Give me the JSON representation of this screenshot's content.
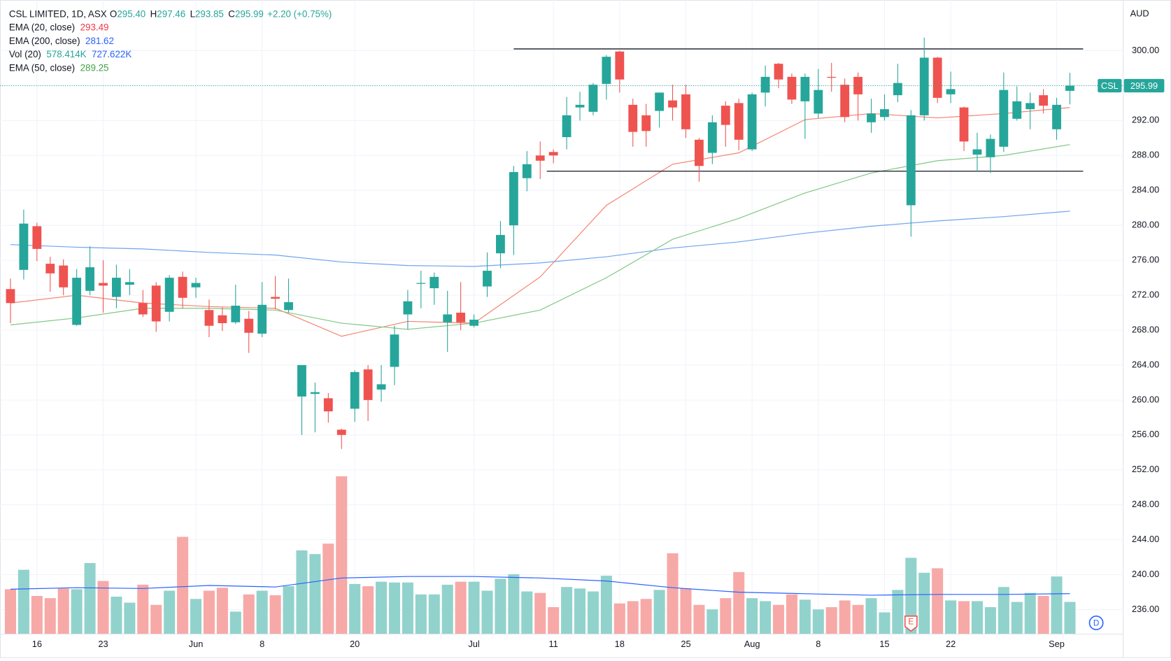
{
  "chart_data": {
    "type": "candlestick",
    "header": {
      "symbol": "CSL LIMITED, 1D, ASX",
      "ohlc": [
        {
          "label": "O",
          "value": "295.40"
        },
        {
          "label": "H",
          "value": "297.46"
        },
        {
          "label": "L",
          "value": "293.85"
        },
        {
          "label": "C",
          "value": "295.99"
        }
      ],
      "change": "+2.20 (+0.75%)"
    },
    "currency": "AUD",
    "up_color": "#26a69a",
    "down_color": "#ef5350",
    "volume_up_color": "#92d2cc",
    "volume_down_color": "#f7a9a7",
    "ylim": [
      233.2,
      305.8
    ],
    "yticks": [
      {
        "value": 236,
        "label": "236.00"
      },
      {
        "value": 240,
        "label": "240.00"
      },
      {
        "value": 244,
        "label": "244.00"
      },
      {
        "value": 248,
        "label": "248.00"
      },
      {
        "value": 252,
        "label": "252.00"
      },
      {
        "value": 256,
        "label": "256.00"
      },
      {
        "value": 260,
        "label": "260.00"
      },
      {
        "value": 264,
        "label": "264.00"
      },
      {
        "value": 268,
        "label": "268.00"
      },
      {
        "value": 272,
        "label": "272.00"
      },
      {
        "value": 276,
        "label": "276.00"
      },
      {
        "value": 280,
        "label": "280.00"
      },
      {
        "value": 284,
        "label": "284.00"
      },
      {
        "value": 288,
        "label": "288.00"
      },
      {
        "value": 292,
        "label": "292.00"
      },
      {
        "value": 296,
        "label": "296.00"
      },
      {
        "value": 300,
        "label": "300.00"
      }
    ],
    "xticks": [
      {
        "value": 2,
        "label": "16"
      },
      {
        "value": 7,
        "label": "23"
      },
      {
        "value": 14,
        "label": "Jun"
      },
      {
        "value": 19,
        "label": "8"
      },
      {
        "value": 26,
        "label": "20"
      },
      {
        "value": 35,
        "label": "Jul"
      },
      {
        "value": 41,
        "label": "11"
      },
      {
        "value": 46,
        "label": "18"
      },
      {
        "value": 51,
        "label": "25"
      },
      {
        "value": 56,
        "label": "Aug"
      },
      {
        "value": 61,
        "label": "8"
      },
      {
        "value": 66,
        "label": "15"
      },
      {
        "value": 71,
        "label": "22"
      },
      {
        "value": 79,
        "label": "Sep"
      }
    ],
    "grid": true,
    "candles": {
      "open": [
        272.7,
        274.9,
        279.9,
        275.6,
        275.4,
        268.6,
        272.5,
        273.4,
        271.8,
        273.2,
        271.1,
        273.1,
        270.1,
        274.1,
        272.9,
        270.3,
        269.7,
        268.9,
        269.3,
        267.6,
        271.8,
        270.3,
        260.4,
        260.7,
        260.2,
        256.6,
        259,
        263.5,
        261.2,
        263.8,
        269.8,
        273.3,
        272.8,
        268.9,
        270,
        268.5,
        273,
        276.8,
        280,
        285.4,
        288,
        288.4,
        290.1,
        293.5,
        293,
        296.2,
        299.9,
        293.8,
        292.6,
        293.1,
        294.3,
        295,
        289.8,
        288.3,
        293.7,
        294,
        288.7,
        295.2,
        298.5,
        297,
        294.2,
        292.8,
        297,
        296.1,
        297,
        291.8,
        292.4,
        294.9,
        282.3,
        292.6,
        299.2,
        295,
        293.5,
        288.1,
        287.8,
        289,
        292.2,
        293.3,
        294.9,
        291,
        295.4
      ],
      "high": [
        273.9,
        281.8,
        280.3,
        276.4,
        276.1,
        275,
        277.6,
        276,
        275.5,
        275,
        272.6,
        273.5,
        274.3,
        274.7,
        274,
        271.5,
        270.6,
        273.2,
        270.2,
        273.5,
        274.2,
        273.9,
        264,
        262,
        260.8,
        256.7,
        263.4,
        264,
        264,
        268.5,
        272.6,
        274.8,
        274.6,
        272.5,
        273.5,
        269.8,
        276.9,
        280.5,
        286.8,
        288.5,
        289.6,
        288.7,
        294.7,
        295.3,
        296.3,
        299.5,
        300,
        294.5,
        293.9,
        295.2,
        296.1,
        296.1,
        290,
        292.6,
        294.2,
        294.5,
        295.2,
        298.3,
        298.6,
        297.4,
        297.4,
        297.9,
        298.6,
        296.8,
        297.5,
        294.5,
        295,
        298.5,
        293.2,
        301.5,
        299.3,
        297.6,
        293.6,
        290.6,
        290.4,
        297.5,
        295.9,
        295.2,
        295.6,
        294.6,
        297.46
      ],
      "low": [
        268.8,
        273.8,
        275.9,
        272.4,
        272,
        268.5,
        272,
        270,
        270.5,
        272,
        269.5,
        267.8,
        269,
        270.5,
        271.7,
        267.2,
        267.9,
        268.7,
        265.4,
        267.2,
        270.4,
        270,
        256,
        256.3,
        257.4,
        254.4,
        257.5,
        257.6,
        259.8,
        261.7,
        268.1,
        270.5,
        270.9,
        265.5,
        268,
        268.3,
        271.8,
        275.1,
        276.6,
        283.9,
        285.3,
        287.1,
        288.7,
        292,
        292.6,
        294.4,
        295.2,
        289,
        289,
        291.2,
        292,
        290,
        285,
        287,
        289,
        288.6,
        288.5,
        293.6,
        295.7,
        293.9,
        289.9,
        292.3,
        295.3,
        291.8,
        292,
        290.6,
        292,
        294.1,
        278.7,
        292,
        294,
        294,
        288.5,
        286.2,
        286,
        288.4,
        292,
        291,
        292.8,
        289.8,
        293.85
      ],
      "close": [
        271.1,
        280.2,
        277.3,
        274.5,
        272.9,
        274,
        275.2,
        273.1,
        274,
        273.5,
        269.8,
        269,
        274,
        271.7,
        273.4,
        268.5,
        268.8,
        270.8,
        267.7,
        270.9,
        271.6,
        271.2,
        264,
        260.9,
        258.7,
        256,
        263.2,
        260,
        261.8,
        267.5,
        271.3,
        273.4,
        274.1,
        269.8,
        268.9,
        269.2,
        274.8,
        278.9,
        286.1,
        287,
        287.4,
        288,
        292.6,
        293.8,
        296.1,
        299.3,
        296.7,
        290.7,
        290.8,
        295.2,
        293.5,
        291,
        286.8,
        291.8,
        291.5,
        289.8,
        295,
        297,
        296.7,
        294.4,
        297,
        295.5,
        296.9,
        292.4,
        295,
        292.8,
        293.3,
        296.3,
        292.6,
        299.2,
        294.6,
        295.6,
        289.6,
        288.7,
        289.9,
        295.5,
        294.2,
        294,
        293.7,
        293.8,
        295.99
      ]
    },
    "volume": {
      "values": [
        807,
        1157,
        686,
        646,
        820,
        807,
        1278,
        955,
        673,
        565,
        888,
        525,
        780,
        1749,
        632,
        780,
        834,
        404,
        713,
        780,
        699,
        861,
        1506,
        1439,
        1627,
        2838,
        901,
        861,
        942,
        928,
        928,
        713,
        713,
        888,
        942,
        942,
        780,
        995,
        1076,
        767,
        740,
        484,
        847,
        820,
        767,
        1049,
        551,
        592,
        632,
        794,
        1453,
        820,
        525,
        444,
        646,
        1116,
        646,
        592,
        525,
        713,
        619,
        444,
        484,
        605,
        525,
        646,
        390,
        794,
        1372,
        1103,
        1184,
        605,
        592,
        592,
        484,
        847,
        578,
        740,
        686,
        1036,
        578.414
      ]
    },
    "lines": [
      {
        "name": "EMA (20, close)",
        "color": "#f4826f",
        "legend_color": "#f23645",
        "legend_values": [
          293.49
        ],
        "x": [
          0,
          5,
          10,
          15,
          20,
          25,
          30,
          35,
          40,
          45,
          50,
          55,
          60,
          65,
          70,
          75,
          80
        ],
        "values": [
          271.1,
          272,
          271.1,
          270.7,
          270.5,
          267.3,
          269,
          268.8,
          274.1,
          282.3,
          287,
          288.3,
          292.1,
          292.8,
          292.3,
          292.8,
          293.49
        ]
      },
      {
        "name": "EMA (200, close)",
        "color": "#6fa3ef",
        "legend_color": "#2962ff",
        "legend_values": [
          281.62
        ],
        "x": [
          0,
          5,
          10,
          15,
          20,
          25,
          30,
          35,
          40,
          45,
          50,
          55,
          60,
          65,
          70,
          75,
          80
        ],
        "values": [
          277.8,
          277.5,
          277.3,
          276.9,
          276.6,
          275.8,
          275.4,
          275.3,
          275.7,
          276.4,
          277.4,
          278.1,
          279.1,
          279.9,
          280.5,
          281,
          281.62
        ]
      },
      {
        "name": "Vol (20)",
        "color": "#2962ff",
        "legend_color": "#2962ff",
        "axis": "volume",
        "legend_values": [
          "578.414K",
          "727.622K"
        ],
        "x": [
          0,
          5,
          10,
          15,
          20,
          25,
          30,
          35,
          40,
          45,
          50,
          55,
          60,
          65,
          70,
          75,
          80
        ],
        "values": [
          807,
          834,
          820,
          874,
          847,
          1009,
          1036,
          1036,
          1009,
          955,
          834,
          753,
          726,
          699,
          713,
          713,
          727.622
        ]
      },
      {
        "name": "EMA (50, close)",
        "color": "#81c784",
        "legend_color": "#43a047",
        "legend_values": [
          289.25
        ],
        "x": [
          0,
          5,
          10,
          15,
          20,
          25,
          30,
          35,
          40,
          45,
          50,
          55,
          60,
          65,
          70,
          75,
          80
        ],
        "values": [
          268.6,
          269.4,
          270.5,
          270.5,
          270.3,
          268.8,
          268.1,
          268.8,
          270.3,
          274,
          278.4,
          280.8,
          283.7,
          286,
          287.4,
          288,
          289.25
        ]
      }
    ],
    "levels": [
      {
        "value": 300.2,
        "from": 38,
        "to": 81
      },
      {
        "value": 286.2,
        "from": 40.5,
        "to": 81
      }
    ],
    "last_price": {
      "symbol": "CSL",
      "value": 295.99,
      "label": "295.99"
    },
    "earnings_marker": {
      "index": 68,
      "label": "E"
    },
    "badge": "D"
  }
}
